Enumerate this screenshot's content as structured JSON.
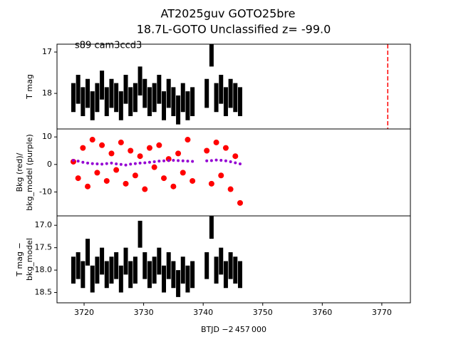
{
  "chart_data": [
    {
      "type": "errorbar",
      "title": "AT2025guv  GOTO25bre",
      "subtitle": "18.7L-GOTO Unclassified z= -99.0",
      "annotation": "s89 cam3ccd3",
      "ylabel": [
        "T mag"
      ],
      "x": [
        3718.2,
        3719.0,
        3719.8,
        3720.6,
        3721.4,
        3722.2,
        3723.0,
        3723.8,
        3724.6,
        3725.4,
        3726.2,
        3727.0,
        3727.8,
        3728.6,
        3729.4,
        3730.2,
        3731.0,
        3731.8,
        3732.6,
        3733.4,
        3734.2,
        3735.0,
        3735.8,
        3736.6,
        3737.4,
        3738.2,
        3740.6,
        3741.4,
        3742.2,
        3743.0,
        3743.8,
        3744.6,
        3745.4,
        3746.2
      ],
      "values": [
        18.1,
        17.9,
        18.2,
        18.0,
        18.3,
        18.1,
        17.8,
        18.2,
        18.0,
        18.1,
        18.3,
        17.9,
        18.2,
        18.1,
        17.7,
        18.0,
        18.2,
        18.1,
        17.9,
        18.3,
        18.0,
        18.2,
        18.4,
        18.1,
        18.3,
        18.2,
        18.0,
        17.0,
        18.1,
        17.9,
        18.2,
        18.0,
        18.1,
        18.2
      ],
      "yerr": 0.35,
      "color": "#000000",
      "vline": {
        "x": 3771,
        "color": "#ff0000",
        "dashed": true
      },
      "ylim": [
        18.86,
        16.81
      ],
      "yticks": [
        17,
        18
      ]
    },
    {
      "type": "scatter",
      "ylabel": [
        "Bkg (red)/",
        "bkg_model (purple)"
      ],
      "x": [
        3718.2,
        3719.0,
        3719.8,
        3720.6,
        3721.4,
        3722.2,
        3723.0,
        3723.8,
        3724.6,
        3725.4,
        3726.2,
        3727.0,
        3727.8,
        3728.6,
        3729.4,
        3730.2,
        3731.0,
        3731.8,
        3732.6,
        3733.4,
        3734.2,
        3735.0,
        3735.8,
        3736.6,
        3737.4,
        3738.2,
        3740.6,
        3741.4,
        3742.2,
        3743.0,
        3743.8,
        3744.6,
        3745.4,
        3746.2
      ],
      "series": [
        {
          "color": "#ff0000",
          "values": [
            1,
            -5,
            6,
            -8,
            9,
            -3,
            7,
            -6,
            4,
            -2,
            8,
            -7,
            5,
            -4,
            3,
            -9,
            6,
            -1,
            7,
            -5,
            2,
            -8,
            4,
            -3,
            9,
            -6,
            5,
            -7,
            8,
            -4,
            6,
            -9,
            3,
            -14
          ]
        },
        {
          "color": "#9400d3",
          "values": [
            1.5,
            1.2,
            0.8,
            0.5,
            0.3,
            0.2,
            0.1,
            0.3,
            0.5,
            0.2,
            0.0,
            -0.2,
            0.1,
            0.3,
            0.5,
            0.6,
            0.8,
            1.0,
            1.2,
            1.3,
            1.4,
            1.5,
            1.4,
            1.3,
            1.2,
            1.1,
            1.3,
            1.4,
            1.6,
            1.5,
            1.3,
            1.0,
            0.6,
            0.2
          ]
        }
      ],
      "ylim": [
        -18.7,
        12.9
      ],
      "yticks": [
        10,
        0,
        -10
      ]
    },
    {
      "type": "errorbar",
      "ylabel": [
        "T mag −",
        "bkg_model"
      ],
      "xlabel": "BTJD −2 457 000",
      "x": [
        3718.2,
        3719.0,
        3719.8,
        3720.6,
        3721.4,
        3722.2,
        3723.0,
        3723.8,
        3724.6,
        3725.4,
        3726.2,
        3727.0,
        3727.8,
        3728.6,
        3729.4,
        3730.2,
        3731.0,
        3731.8,
        3732.6,
        3733.4,
        3734.2,
        3735.0,
        3735.8,
        3736.6,
        3737.4,
        3738.2,
        3740.6,
        3741.4,
        3742.2,
        3743.0,
        3743.8,
        3744.6,
        3745.4,
        3746.2
      ],
      "values": [
        18.0,
        17.9,
        18.1,
        17.6,
        18.2,
        18.0,
        17.8,
        18.1,
        18.0,
        17.9,
        18.2,
        17.8,
        18.1,
        18.0,
        17.2,
        17.9,
        18.1,
        18.0,
        17.8,
        18.2,
        17.9,
        18.1,
        18.3,
        18.0,
        18.2,
        18.1,
        17.9,
        17.0,
        18.0,
        17.8,
        18.1,
        17.9,
        18.0,
        18.1
      ],
      "yerr": 0.3,
      "color": "#000000",
      "ylim": [
        18.73,
        16.79
      ],
      "yticks": [
        {
          "value": 17,
          "label": "17.0"
        },
        17.5,
        {
          "value": 18,
          "label": "18.0"
        },
        18.5
      ],
      "xlim": [
        3715.45,
        3774.8
      ],
      "xticks": [
        3720,
        3730,
        3740,
        3750,
        3760,
        3770
      ]
    }
  ]
}
